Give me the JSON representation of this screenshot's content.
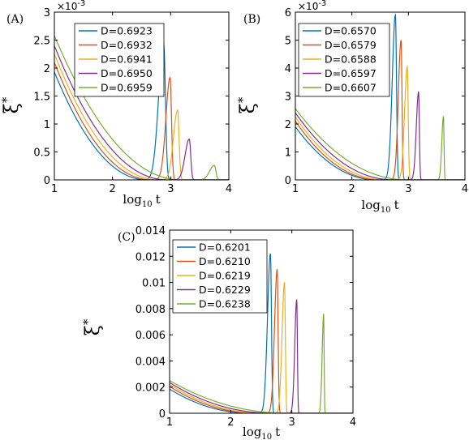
{
  "chart_data": [
    {
      "panel_label": "(A)",
      "type": "line",
      "xlabel_base": "log",
      "xlabel_sub": "10",
      "xlabel_var": "t",
      "ylabel": "ξ",
      "ylabel_sup": "*",
      "multiplier_base": "×10",
      "multiplier_exp": "-3",
      "xlim": [
        1,
        4
      ],
      "ylim": [
        0,
        3
      ],
      "xticks": [
        1,
        2,
        3,
        4
      ],
      "xtick_labels": [
        "1",
        "2",
        "3",
        "4"
      ],
      "yticks": [
        0,
        0.5,
        1,
        1.5,
        2,
        2.5,
        3
      ],
      "ytick_labels": [
        "0",
        "0.5",
        "1",
        "1.5",
        "2",
        "2.5",
        "3"
      ],
      "legend_position": "top-right",
      "series": [
        {
          "name": "D=0.6923",
          "color": "#0072BD",
          "y0": 1.93,
          "valley_x": 2.6,
          "peak_x": 2.88,
          "peak_y": 2.43,
          "width": 0.055
        },
        {
          "name": "D=0.6932",
          "color": "#D95319",
          "y0": 2.1,
          "valley_x": 2.68,
          "peak_x": 2.99,
          "peak_y": 1.83,
          "width": 0.045
        },
        {
          "name": "D=0.6941",
          "color": "#EDB120",
          "y0": 2.25,
          "valley_x": 2.8,
          "peak_x": 3.12,
          "peak_y": 1.25,
          "width": 0.045
        },
        {
          "name": "D=0.6950",
          "color": "#7E2F8E",
          "y0": 2.4,
          "valley_x": 2.95,
          "peak_x": 3.32,
          "peak_y": 0.73,
          "width": 0.045
        },
        {
          "name": "D=0.6959",
          "color": "#77AC30",
          "y0": 2.58,
          "valley_x": 3.2,
          "peak_x": 3.75,
          "peak_y": 0.26,
          "width": 0.05
        }
      ]
    },
    {
      "panel_label": "(B)",
      "type": "line",
      "xlabel_base": "log",
      "xlabel_sub": "10",
      "xlabel_var": "t",
      "ylabel": "ξ",
      "ylabel_sup": "*",
      "multiplier_base": "×10",
      "multiplier_exp": "-3",
      "xlim": [
        1,
        4
      ],
      "ylim": [
        0,
        6
      ],
      "xticks": [
        1,
        2,
        3,
        4
      ],
      "xtick_labels": [
        "1",
        "2",
        "3",
        "4"
      ],
      "yticks": [
        0,
        1,
        2,
        3,
        4,
        5,
        6
      ],
      "ytick_labels": [
        "0",
        "1",
        "2",
        "3",
        "4",
        "5",
        "6"
      ],
      "legend_position": "top-left",
      "series": [
        {
          "name": "D=0.6570",
          "color": "#0072BD",
          "y0": 1.9,
          "valley_x": 2.45,
          "peak_x": 2.77,
          "peak_y": 5.9,
          "width": 0.035
        },
        {
          "name": "D=0.6579",
          "color": "#D95319",
          "y0": 2.1,
          "valley_x": 2.5,
          "peak_x": 2.87,
          "peak_y": 5.0,
          "width": 0.03
        },
        {
          "name": "D=0.6588",
          "color": "#EDB120",
          "y0": 2.25,
          "valley_x": 2.6,
          "peak_x": 2.98,
          "peak_y": 4.05,
          "width": 0.03
        },
        {
          "name": "D=0.6597",
          "color": "#7E2F8E",
          "y0": 2.4,
          "valley_x": 2.75,
          "peak_x": 3.18,
          "peak_y": 3.15,
          "width": 0.025
        },
        {
          "name": "D=0.6607",
          "color": "#77AC30",
          "y0": 2.55,
          "valley_x": 3.0,
          "peak_x": 3.62,
          "peak_y": 2.28,
          "width": 0.018
        }
      ]
    },
    {
      "panel_label": "(C)",
      "type": "line",
      "xlabel_base": "log",
      "xlabel_sub": "10",
      "xlabel_var": "t",
      "ylabel": "ξ",
      "ylabel_sup": "*",
      "xlim": [
        1,
        4
      ],
      "ylim": [
        0,
        0.014
      ],
      "xticks": [
        1,
        2,
        3,
        4
      ],
      "xtick_labels": [
        "1",
        "2",
        "3",
        "4"
      ],
      "yticks": [
        0,
        0.002,
        0.004,
        0.006,
        0.008,
        0.01,
        0.012,
        0.014
      ],
      "ytick_labels": [
        "0",
        "0.002",
        "0.004",
        "0.006",
        "0.008",
        "0.01",
        "0.012",
        "0.014"
      ],
      "legend_position": "top-left",
      "series": [
        {
          "name": "D=0.6201",
          "color": "#0072BD",
          "y0": 0.00185,
          "valley_x": 2.35,
          "peak_x": 2.65,
          "peak_y": 0.0122,
          "width": 0.03
        },
        {
          "name": "D=0.6210",
          "color": "#D95319",
          "y0": 0.00205,
          "valley_x": 2.45,
          "peak_x": 2.76,
          "peak_y": 0.011,
          "width": 0.027
        },
        {
          "name": "D=0.6219",
          "color": "#EDB120",
          "y0": 0.0022,
          "valley_x": 2.55,
          "peak_x": 2.88,
          "peak_y": 0.01,
          "width": 0.025
        },
        {
          "name": "D=0.6229",
          "color": "#7E2F8E",
          "y0": 0.00235,
          "valley_x": 2.7,
          "peak_x": 3.08,
          "peak_y": 0.0087,
          "width": 0.02
        },
        {
          "name": "D=0.6238",
          "color": "#77AC30",
          "y0": 0.0025,
          "valley_x": 2.95,
          "peak_x": 3.52,
          "peak_y": 0.0076,
          "width": 0.015
        }
      ]
    }
  ]
}
